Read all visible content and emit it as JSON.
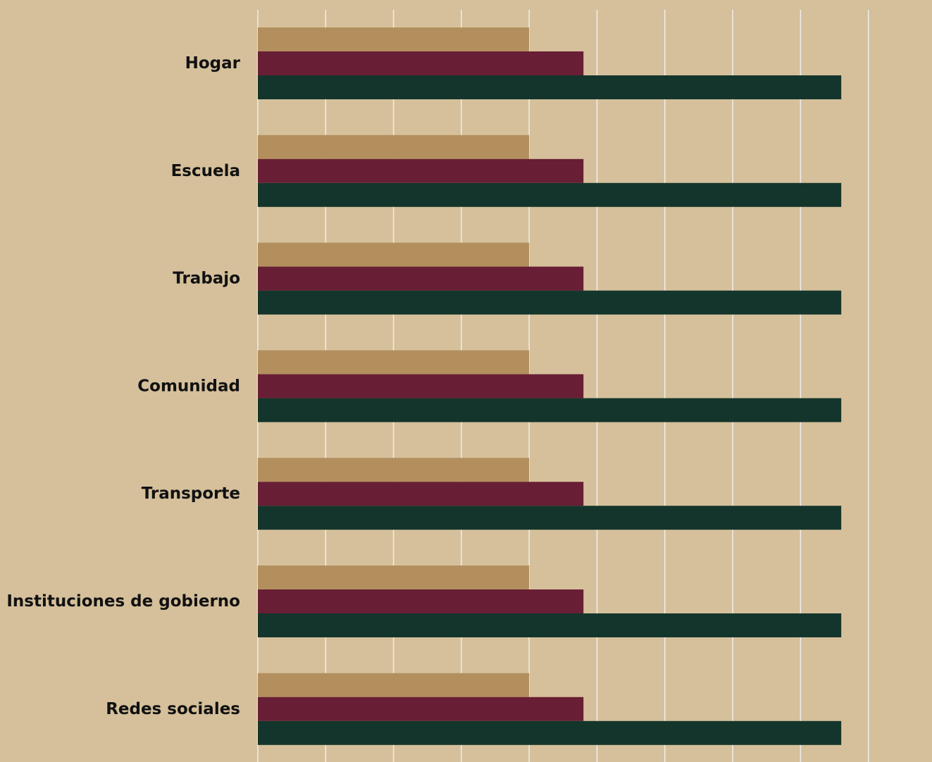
{
  "colors": {
    "background": "#d5c09b",
    "grid": "#eeeeee",
    "text": "#111111"
  },
  "chart_data": {
    "type": "bar",
    "orientation": "horizontal",
    "title": "",
    "xlabel": "",
    "ylabel": "",
    "categories": [
      "Hogar",
      "Escuela",
      "Trabajo ",
      "Comunidad",
      "Transporte ",
      "Instituciones de gobierno ",
      "Redes sociales"
    ],
    "series": [
      {
        "color": "#b38f5e",
        "values": [
          4,
          4,
          4,
          4,
          4,
          4,
          4
        ]
      },
      {
        "color": "#681e34",
        "values": [
          4.8,
          4.8,
          4.8,
          4.8,
          4.8,
          4.8,
          4.8
        ]
      },
      {
        "color": "#14352b",
        "values": [
          8.6,
          8.6,
          8.6,
          8.6,
          8.6,
          8.6,
          8.6
        ]
      }
    ],
    "xlim": [
      0,
      9
    ],
    "x_gridlines": true,
    "x_tick_labels_visible": false,
    "legend_visible": false
  }
}
